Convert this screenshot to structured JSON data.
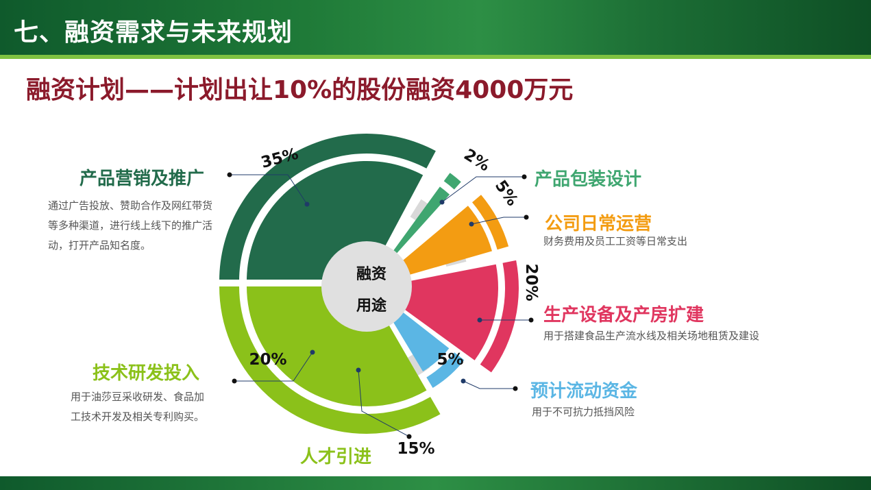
{
  "header": {
    "title": "七、融资需求与未来规划"
  },
  "subtitle": "融资计划——计划出让10%的股份融资4000万元",
  "center": {
    "line1": "融资",
    "line2": "用途"
  },
  "colors": {
    "marketing": "#226b4b",
    "packaging": "#3fa670",
    "operations": "#f39c12",
    "equipment": "#e0365f",
    "liquidity": "#5bb6e4",
    "talent": "#8bc11a",
    "rnd": "#8bc11a",
    "title_red": "#8b1a2b"
  },
  "items": [
    {
      "key": "marketing",
      "title": "产品营销及推广",
      "desc": [
        "通过广告投放、赞助合作及网红带货",
        "等多种渠道，进行线上线下的推广活",
        "动，打开产品知名度。"
      ],
      "pct": "35%"
    },
    {
      "key": "packaging",
      "title": "产品包装设计",
      "pct": "2%"
    },
    {
      "key": "operations",
      "title": "公司日常运营",
      "desc": [
        "财务费用及员工工资等日常支出"
      ],
      "pct": "5%"
    },
    {
      "key": "equipment",
      "title": "生产设备及产房扩建",
      "desc": [
        "用于搭建食品生产流水线及相关场地租赁及建设"
      ],
      "pct": "20%"
    },
    {
      "key": "liquidity",
      "title": "预计流动资金",
      "desc": [
        "用于不可抗力抵挡风险"
      ],
      "pct": "5%"
    },
    {
      "key": "talent",
      "title": "人才引进",
      "pct": "15%"
    },
    {
      "key": "rnd",
      "title": "技术研发投入",
      "desc": [
        "用于油莎豆采收研发、食品加",
        "工技术开发及相关专利购买。"
      ],
      "pct": "20%"
    }
  ]
}
